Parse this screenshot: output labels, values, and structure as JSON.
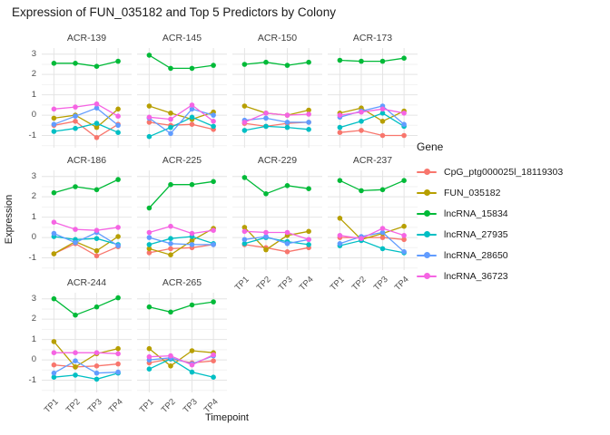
{
  "title": "Expression of FUN_035182 and Top 5 Predictors by Colony",
  "legend": {
    "title": "Gene"
  },
  "chart_data": {
    "type": "line",
    "title": "Expression of FUN_035182 and Top 5 Predictors by Colony",
    "xlabel": "Timepoint",
    "ylabel": "Expression",
    "legend_title": "Gene",
    "legend_position": "right",
    "grid": true,
    "categories": [
      "TP1",
      "TP2",
      "TP3",
      "TP4"
    ],
    "ylim": [
      -1.6,
      3.3
    ],
    "y_ticks": [
      3,
      2,
      1,
      0,
      -1
    ],
    "y_minor_gridlines": [
      2.5,
      1.5,
      0.5,
      -0.5,
      -1.5
    ],
    "series_names": [
      "CpG_ptg000025l_18119303",
      "FUN_035182",
      "lncRNA_15834",
      "lncRNA_27935",
      "lncRNA_28650",
      "lncRNA_36723"
    ],
    "series_colors": [
      "#F8766D",
      "#B79F00",
      "#00BA38",
      "#00BFC4",
      "#619CFF",
      "#F564E3"
    ],
    "facets": [
      {
        "name": "ACR-139",
        "series": [
          [
            -0.5,
            -0.3,
            -1.1,
            -0.45
          ],
          [
            -0.15,
            0.0,
            -0.6,
            0.3
          ],
          [
            2.55,
            2.55,
            2.4,
            2.65
          ],
          [
            -0.8,
            -0.65,
            -0.4,
            -0.85
          ],
          [
            -0.45,
            -0.05,
            0.35,
            -0.5
          ],
          [
            0.3,
            0.4,
            0.55,
            -0.05
          ]
        ]
      },
      {
        "name": "ACR-145",
        "series": [
          [
            -0.35,
            -0.5,
            -0.45,
            -0.7
          ],
          [
            0.45,
            0.1,
            -0.2,
            0.15
          ],
          [
            2.95,
            2.3,
            2.3,
            2.45
          ],
          [
            -1.05,
            -0.6,
            -0.1,
            -0.55
          ],
          [
            -0.15,
            -0.9,
            0.3,
            0.0
          ],
          [
            -0.1,
            -0.2,
            0.5,
            -0.3
          ]
        ]
      },
      {
        "name": "ACR-150",
        "series": [
          [
            -0.4,
            -0.55,
            -0.4,
            -0.35
          ],
          [
            0.45,
            0.1,
            0.0,
            0.25
          ],
          [
            2.5,
            2.6,
            2.45,
            2.6
          ],
          [
            -0.75,
            -0.55,
            -0.6,
            -0.7
          ],
          [
            -0.25,
            -0.15,
            -0.35,
            -0.35
          ],
          [
            -0.35,
            0.1,
            0.0,
            0.05
          ]
        ]
      },
      {
        "name": "ACR-173",
        "series": [
          [
            -0.85,
            -0.75,
            -1.0,
            -1.0
          ],
          [
            0.1,
            0.35,
            -0.3,
            0.2
          ],
          [
            2.7,
            2.65,
            2.65,
            2.8
          ],
          [
            -0.6,
            -0.3,
            0.1,
            -0.55
          ],
          [
            -0.1,
            0.2,
            0.45,
            -0.45
          ],
          [
            0.0,
            0.15,
            0.3,
            0.1
          ]
        ]
      },
      {
        "name": "ACR-186",
        "series": [
          [
            -0.8,
            -0.3,
            -0.9,
            -0.45
          ],
          [
            -0.8,
            -0.2,
            -0.65,
            0.05
          ],
          [
            2.2,
            2.5,
            2.35,
            2.85
          ],
          [
            0.05,
            -0.1,
            -0.05,
            -0.35
          ],
          [
            0.2,
            -0.25,
            0.25,
            -0.4
          ],
          [
            0.75,
            0.4,
            0.35,
            0.5
          ]
        ]
      },
      {
        "name": "ACR-225",
        "series": [
          [
            -0.75,
            -0.55,
            -0.5,
            -0.35
          ],
          [
            -0.55,
            -0.85,
            -0.15,
            0.45
          ],
          [
            1.45,
            2.6,
            2.6,
            2.75
          ],
          [
            -0.35,
            -0.05,
            0.05,
            -0.3
          ],
          [
            0.0,
            -0.3,
            -0.35,
            -0.35
          ],
          [
            0.25,
            0.55,
            0.2,
            0.35
          ]
        ]
      },
      {
        "name": "ACR-229",
        "series": [
          [
            -0.35,
            -0.5,
            -0.7,
            -0.5
          ],
          [
            0.5,
            -0.6,
            0.1,
            0.3
          ],
          [
            2.95,
            2.15,
            2.55,
            2.4
          ],
          [
            -0.3,
            0.0,
            -0.2,
            -0.35
          ],
          [
            -0.1,
            0.05,
            -0.3,
            -0.1
          ],
          [
            0.3,
            0.25,
            0.25,
            -0.1
          ]
        ]
      },
      {
        "name": "ACR-237",
        "series": [
          [
            0.0,
            0.0,
            0.0,
            -0.1
          ],
          [
            0.95,
            -0.1,
            0.2,
            0.55
          ],
          [
            2.8,
            2.3,
            2.35,
            2.8
          ],
          [
            -0.4,
            -0.15,
            -0.55,
            -0.75
          ],
          [
            -0.3,
            0.05,
            0.25,
            -0.7
          ],
          [
            0.1,
            -0.05,
            0.45,
            0.1
          ]
        ]
      },
      {
        "name": "ACR-244",
        "series": [
          [
            -0.25,
            -0.35,
            -0.3,
            -0.2
          ],
          [
            0.9,
            -0.35,
            0.3,
            0.55
          ],
          [
            3.0,
            2.2,
            2.6,
            3.05
          ],
          [
            -0.85,
            -0.75,
            -0.95,
            -0.65
          ],
          [
            -0.65,
            -0.05,
            -0.65,
            -0.6
          ],
          [
            0.35,
            0.35,
            0.35,
            0.3
          ]
        ]
      },
      {
        "name": "ACR-265",
        "series": [
          [
            -0.15,
            0.05,
            -0.15,
            -0.05
          ],
          [
            0.55,
            -0.3,
            0.45,
            0.35
          ],
          [
            2.6,
            2.35,
            2.7,
            2.85
          ],
          [
            -0.45,
            0.05,
            -0.6,
            -0.85
          ],
          [
            0.0,
            0.1,
            -0.2,
            0.2
          ],
          [
            0.15,
            0.2,
            -0.25,
            0.25
          ]
        ]
      }
    ]
  }
}
